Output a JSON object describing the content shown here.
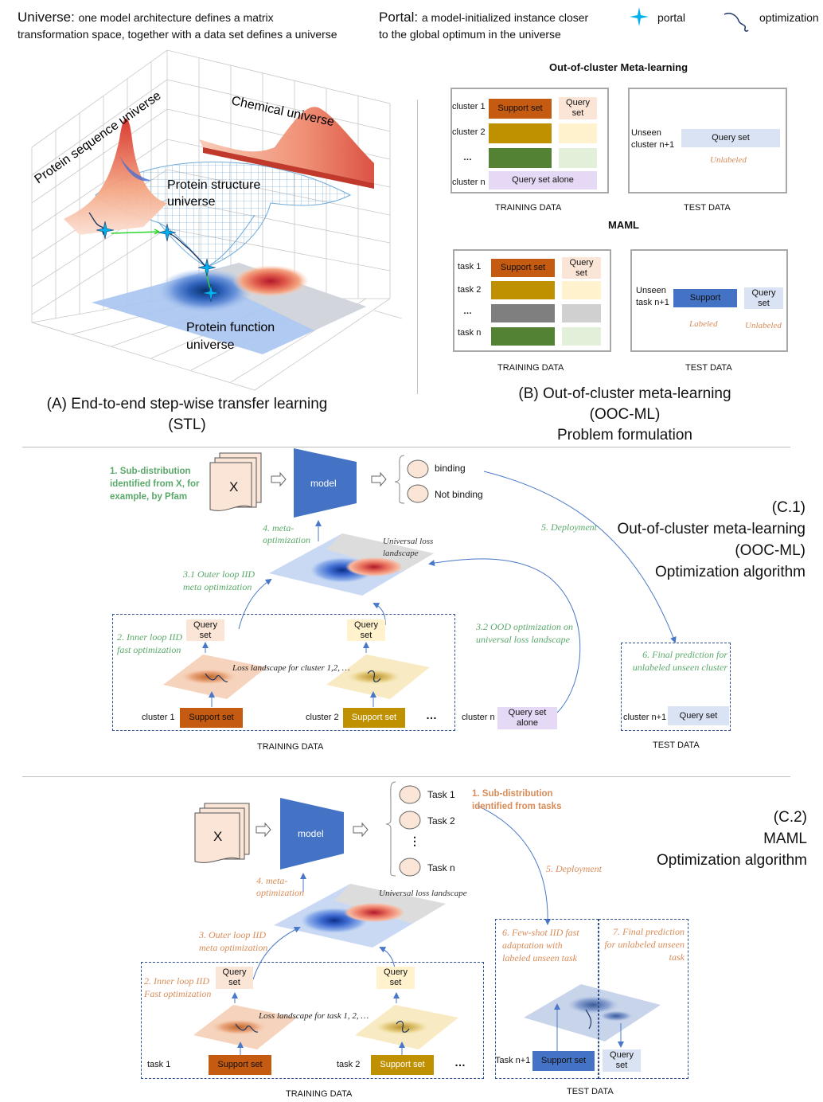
{
  "legend": {
    "universe_term": "Universe:",
    "universe_def1": "one model architecture defines a matrix",
    "universe_def2": "transformation space, together with  a data set defines a universe",
    "portal_term": "Portal:",
    "portal_def1": "a model-initialized instance closer",
    "portal_def2": "to the global optimum in the universe",
    "portal_symbol": "portal",
    "optimization_symbol": "optimization"
  },
  "panel_a": {
    "labels": {
      "protein_sequence": "Protein sequence universe",
      "chemical": "Chemical universe",
      "structure1": "Protein structure",
      "structure2": "universe",
      "function1": "Protein function",
      "function2": "universe"
    },
    "caption1": "(A) End-to-end step-wise transfer learning",
    "caption2": "(STL)"
  },
  "panel_b": {
    "ooc_title": "Out-of-cluster Meta-learning",
    "ooc_clusters": [
      "cluster 1",
      "cluster 2",
      "…",
      "cluster n"
    ],
    "support_set": "Support set",
    "query_set": "Query set",
    "query_set_alone": "Query set alone",
    "unseen_cluster": "Unseen cluster  n+1",
    "unlabeled": "Unlabeled",
    "training_data": "TRAINING DATA",
    "test_data": "TEST DATA",
    "maml_title": "MAML",
    "maml_tasks": [
      "task 1",
      "task 2",
      "…",
      "task n"
    ],
    "unseen_task": "Unseen task n+1",
    "support": "Support",
    "labeled": "Labeled",
    "caption1": "(B) Out-of-cluster meta-learning",
    "caption2": "(OOC-ML)",
    "caption3": "Problem formulation"
  },
  "panel_c1": {
    "step1": "1. Sub-distribution identified from X, for example, by Pfam",
    "x_label": "X",
    "model": "model",
    "binding": "binding",
    "not_binding": "Not binding",
    "step4": "4. meta- optimization",
    "universal_loss": "Universal loss landscape",
    "step5": "5. Deployment",
    "step31": "3.1 Outer loop IID meta optimization",
    "step2": "2. Inner loop IID fast optimization",
    "query_set": "Query set",
    "loss_landscape": "Loss landscape for cluster 1,2, …",
    "step32": "3.2 OOD optimization on universal loss landscape",
    "step6": "6. Final prediction for unlabeled unseen cluster",
    "cluster1": "cluster 1",
    "cluster2": "cluster 2",
    "ellipsis": "…",
    "clustern": "cluster n",
    "clustern1": "cluster n+1",
    "support_set": "Support set",
    "query_set_alone": "Query set alone",
    "training_data": "TRAINING DATA",
    "test_data": "TEST DATA",
    "title1": "(C.1)",
    "title2": "Out-of-cluster meta-learning",
    "title3": "(OOC-ML)",
    "title4": "Optimization algorithm"
  },
  "panel_c2": {
    "x_label": "X",
    "model": "model",
    "tasks": [
      "Task 1",
      "Task 2",
      "⋮",
      "Task n"
    ],
    "step1": "1. Sub-distribution identified from tasks",
    "step4": "4. meta- optimization",
    "universal_loss": "Universal loss landscape",
    "step5": "5. Deployment",
    "step3": "3. Outer loop IID meta optimization",
    "step2": "2. Inner loop IID Fast optimization",
    "query_set": "Query set",
    "loss_landscape": "Loss landscape for task 1, 2, …",
    "step6": "6. Few-shot IID fast adaptation with labeled unseen task",
    "step7": "7. Final  prediction for unlabeled unseen task",
    "task1": "task 1",
    "task2": "task 2",
    "ellipsis": "…",
    "taskn1": "Task n+1",
    "support_set": "Support set",
    "training_data": "TRAINING DATA",
    "test_data": "TEST DATA",
    "title1": "(C.2)",
    "title2": "MAML",
    "title3": "Optimization algorithm"
  },
  "colors": {
    "support_orange": "#c55a11",
    "gold": "#bf9000",
    "dark_green": "#548235",
    "gray": "#7f7f7f",
    "query_peach": "#fbe5d6",
    "query_cream": "#fff2cc",
    "query_mint": "#e2f0d9",
    "query_gray": "#d0d0d0",
    "lavender": "#e6d9f5",
    "light_blue": "#dae3f3",
    "blue": "#4472c4",
    "step_green": "#5aa96a",
    "step_orange": "#d98c57"
  }
}
